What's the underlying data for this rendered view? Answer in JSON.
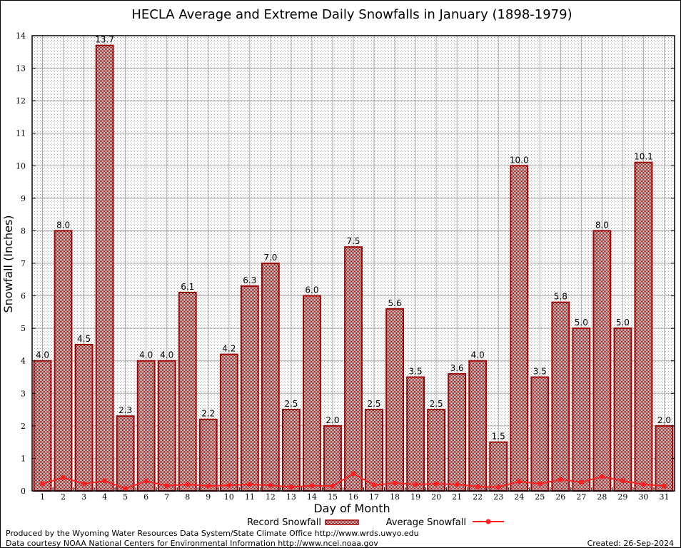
{
  "chart_data": {
    "type": "bar",
    "title": "HECLA Average and Extreme Daily Snowfalls in January (1898-1979)",
    "xlabel": "Day of Month",
    "ylabel": "Snowfall (Inches)",
    "ylim": [
      0,
      14
    ],
    "yticks": [
      0,
      1,
      2,
      3,
      4,
      5,
      6,
      7,
      8,
      9,
      10,
      11,
      12,
      13,
      14
    ],
    "grid": true,
    "legend_position": "bottom",
    "categories": [
      "1",
      "2",
      "3",
      "4",
      "5",
      "6",
      "7",
      "8",
      "9",
      "10",
      "11",
      "12",
      "13",
      "14",
      "15",
      "16",
      "17",
      "18",
      "19",
      "20",
      "21",
      "22",
      "23",
      "24",
      "25",
      "26",
      "27",
      "28",
      "29",
      "30",
      "31"
    ],
    "series": [
      {
        "name": "Record Snowfall",
        "type": "bar",
        "color": "#cc0000",
        "values": [
          4.0,
          8.0,
          4.5,
          13.7,
          2.3,
          4.0,
          4.0,
          6.1,
          2.2,
          4.2,
          6.3,
          7.0,
          2.5,
          6.0,
          2.0,
          7.5,
          2.5,
          5.6,
          3.5,
          2.5,
          3.6,
          4.0,
          1.5,
          10.0,
          3.5,
          5.8,
          5.0,
          8.0,
          5.0,
          10.1,
          2.0
        ],
        "labels": [
          "4.0",
          "8.0",
          "4.5",
          "13.7",
          "2.3",
          "4.0",
          "4.0",
          "6.1",
          "2.2",
          "4.2",
          "6.3",
          "7.0",
          "2.5",
          "6.0",
          "2.0",
          "7.5",
          "2.5",
          "5.6",
          "3.5",
          "2.5",
          "3.6",
          "4.0",
          "1.5",
          "10.0",
          "3.5",
          "5.8",
          "5.0",
          "8.0",
          "5.0",
          "10.1",
          "2.0"
        ]
      },
      {
        "name": "Average Snowfall",
        "type": "line",
        "color": "#ff2020",
        "values": [
          0.22,
          0.41,
          0.22,
          0.31,
          0.07,
          0.3,
          0.16,
          0.2,
          0.15,
          0.17,
          0.2,
          0.17,
          0.12,
          0.16,
          0.15,
          0.53,
          0.18,
          0.24,
          0.2,
          0.22,
          0.2,
          0.13,
          0.12,
          0.29,
          0.22,
          0.35,
          0.27,
          0.44,
          0.31,
          0.2,
          0.15
        ]
      }
    ]
  },
  "footer": {
    "line1": "Produced by the Wyoming Water Resources Data System/State Climate Office http://www.wrds.uwyo.edu",
    "line2": "Data courtesy NOAA National Centers for Environmental Information http://www.ncei.noaa.gov",
    "created": "Created: 26-Sep-2024"
  }
}
